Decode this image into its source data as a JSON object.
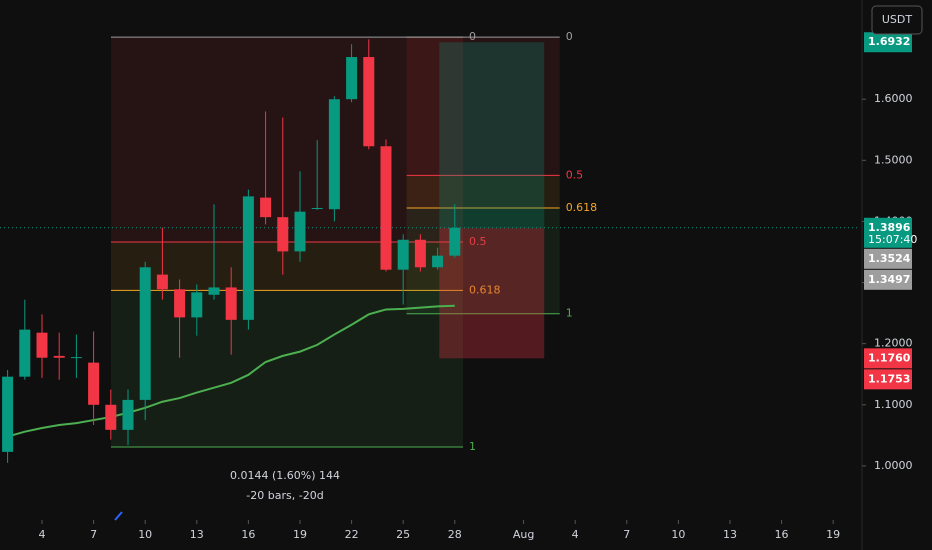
{
  "chart_data": {
    "type": "candlestick",
    "currency": "USDT",
    "x": [
      2,
      3,
      4,
      5,
      6,
      7,
      8,
      9,
      10,
      11,
      12,
      13,
      14,
      15,
      16,
      17,
      18,
      19,
      20,
      21,
      22,
      23,
      24,
      25,
      26,
      27,
      28
    ],
    "open": [
      1.023,
      1.146,
      1.218,
      1.18,
      1.178,
      1.169,
      1.1,
      1.059,
      1.108,
      1.313,
      1.289,
      1.243,
      1.28,
      1.292,
      1.239,
      1.439,
      1.407,
      1.351,
      1.421,
      1.42,
      1.6,
      1.669,
      1.523,
      1.321,
      1.37,
      1.325,
      1.344
    ],
    "high": [
      1.157,
      1.272,
      1.248,
      1.218,
      1.215,
      1.22,
      1.125,
      1.125,
      1.334,
      1.39,
      1.305,
      1.297,
      1.428,
      1.325,
      1.452,
      1.58,
      1.57,
      1.482,
      1.533,
      1.605,
      1.69,
      1.698,
      1.534,
      1.379,
      1.379,
      1.357,
      1.428
    ],
    "low": [
      1.005,
      1.141,
      1.144,
      1.141,
      1.144,
      1.067,
      1.043,
      1.034,
      1.075,
      1.272,
      1.177,
      1.213,
      1.272,
      1.182,
      1.223,
      1.395,
      1.313,
      1.334,
      1.419,
      1.4,
      1.595,
      1.518,
      1.318,
      1.264,
      1.318,
      1.321,
      1.341
    ],
    "close": [
      1.146,
      1.223,
      1.177,
      1.177,
      1.178,
      1.1,
      1.059,
      1.108,
      1.325,
      1.289,
      1.243,
      1.284,
      1.292,
      1.239,
      1.441,
      1.407,
      1.351,
      1.416,
      1.422,
      1.6,
      1.669,
      1.523,
      1.321,
      1.37,
      1.325,
      1.344,
      1.3896
    ],
    "up_color": "#089981",
    "down_color": "#f23645",
    "series": [
      {
        "color": "#4caf50",
        "values": [
          1.048,
          1.056,
          1.062,
          1.067,
          1.07,
          1.075,
          1.08,
          1.087,
          1.095,
          1.105,
          1.111,
          1.12,
          1.128,
          1.136,
          1.149,
          1.17,
          1.18,
          1.187,
          1.198,
          1.215,
          1.231,
          1.248,
          1.256,
          1.257,
          1.259,
          1.261,
          1.262
        ]
      }
    ],
    "xlim": [
      1.558,
      51.56
    ],
    "ylim": [
      0.9115,
      1.7623
    ],
    "xticks": [
      4,
      7,
      10,
      13,
      16,
      19,
      22,
      25,
      28,
      {
        "value": 32,
        "label": "Aug"
      },
      {
        "value": 35,
        "label": "4"
      },
      {
        "value": 38,
        "label": "7"
      },
      {
        "value": 41,
        "label": "10"
      },
      {
        "value": 44,
        "label": "13"
      },
      {
        "value": 47,
        "label": "16"
      },
      {
        "value": 50,
        "label": "19"
      }
    ],
    "yticks": [
      {
        "value": 1,
        "label": "1.0000"
      },
      {
        "value": 1.1,
        "label": "1.1000"
      },
      {
        "value": 1.2,
        "label": "1.2000"
      },
      {
        "value": 1.3,
        "label": "1.3000"
      },
      {
        "value": 1.4,
        "label": "1.4000"
      },
      {
        "value": 1.5,
        "label": "1.5000"
      },
      {
        "value": 1.6,
        "label": "1.6000"
      }
    ],
    "fibs": [
      {
        "x": [
          8.01,
          28.48
        ],
        "price_0": 1.7016,
        "price_1": 1.031,
        "levels": [
          0,
          0.5,
          0.618,
          1
        ],
        "colors": [
          "#9e9e9e",
          "#f23645",
          "#f5a623",
          "#4caf50"
        ]
      },
      {
        "x": [
          25.2,
          34.1
        ],
        "price_0": 1.7016,
        "price_1": 1.249,
        "levels": [
          0,
          0.5,
          0.618,
          1
        ],
        "colors": [
          "#9e9e9e",
          "#f23645",
          "#f5a623",
          "#4caf50"
        ]
      }
    ],
    "position": {
      "x": [
        27.1,
        33.2
      ],
      "entry": 1.3896,
      "target": 1.6932,
      "stop": 1.176
    },
    "price_labels": [
      {
        "value": 1.6932,
        "label": "1.6932",
        "color": "#089981"
      },
      {
        "value": 1.3896,
        "label": "1.3896",
        "sub": "15:07:40",
        "color": "#089981"
      },
      {
        "value": 1.3524,
        "label": "1.3524",
        "color": "#9e9e9e"
      },
      {
        "value": 1.3497,
        "label": "1.3497",
        "color": "#9e9e9e"
      },
      {
        "value": 1.176,
        "label": "1.1760",
        "color": "#f23645"
      },
      {
        "value": 1.1753,
        "label": "1.1753",
        "color": "#f23645"
      }
    ],
    "measure": [
      "0.0144 (1.60%) 144",
      "-20 bars, -20d"
    ]
  }
}
